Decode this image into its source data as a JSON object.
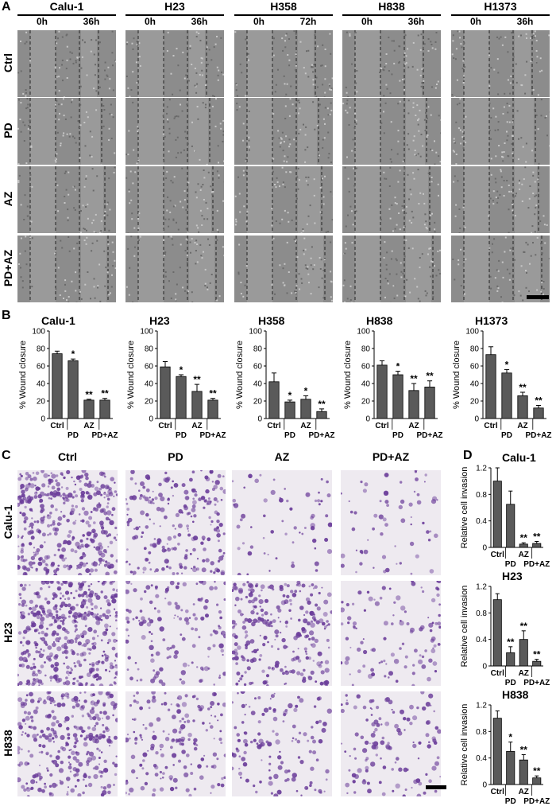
{
  "panels": {
    "A": "A",
    "B": "B",
    "C": "C",
    "D": "D"
  },
  "wound_assay": {
    "cell_lines": [
      {
        "name": "Calu-1",
        "times": [
          "0h",
          "36h"
        ]
      },
      {
        "name": "H23",
        "times": [
          "0h",
          "36h"
        ]
      },
      {
        "name": "H358",
        "times": [
          "0h",
          "72h"
        ]
      },
      {
        "name": "H838",
        "times": [
          "0h",
          "36h"
        ]
      },
      {
        "name": "H1373",
        "times": [
          "0h",
          "36h"
        ]
      }
    ],
    "conditions": [
      "Ctrl",
      "PD",
      "AZ",
      "PD+AZ"
    ]
  },
  "invasion_images": {
    "conditions": [
      "Ctrl",
      "PD",
      "AZ",
      "PD+AZ"
    ],
    "cell_lines": [
      "Calu-1",
      "H23",
      "H838"
    ]
  },
  "colors": {
    "bar": "#5a5a5a",
    "micro_bg": "#8c8c8c",
    "stain_bg": "#eeeaf0",
    "stain_cell": "#6b3d9a"
  },
  "chart_data": [
    {
      "type": "bar",
      "title": "Calu-1",
      "ylabel": "% Wound closure",
      "ylim": [
        0,
        100
      ],
      "yticks": [
        "0",
        "20",
        "40",
        "60",
        "80",
        "100"
      ],
      "categories": [
        "Ctrl",
        "PD",
        "AZ",
        "PD+AZ"
      ],
      "values": [
        74,
        66,
        21,
        21
      ],
      "errors": [
        3,
        2,
        1,
        2
      ],
      "sig": [
        "",
        "*",
        "**",
        "**"
      ]
    },
    {
      "type": "bar",
      "title": "H23",
      "ylabel": "% Wound closure",
      "ylim": [
        0,
        100
      ],
      "yticks": [
        "0",
        "20",
        "40",
        "60",
        "80",
        "100"
      ],
      "categories": [
        "Ctrl",
        "PD",
        "AZ",
        "PD+AZ"
      ],
      "values": [
        59,
        48,
        31,
        21
      ],
      "errors": [
        6,
        2,
        8,
        2
      ],
      "sig": [
        "",
        "*",
        "**",
        "**"
      ]
    },
    {
      "type": "bar",
      "title": "H358",
      "ylabel": "% Wound closure",
      "ylim": [
        0,
        100
      ],
      "yticks": [
        "0",
        "20",
        "40",
        "60",
        "80",
        "100"
      ],
      "categories": [
        "Ctrl",
        "PD",
        "AZ",
        "PD+AZ"
      ],
      "values": [
        42,
        19,
        22,
        8
      ],
      "errors": [
        10,
        2,
        4,
        3
      ],
      "sig": [
        "",
        "*",
        "*",
        "**"
      ]
    },
    {
      "type": "bar",
      "title": "H838",
      "ylabel": "% Wound closure",
      "ylim": [
        0,
        100
      ],
      "yticks": [
        "0",
        "20",
        "40",
        "60",
        "80",
        "100"
      ],
      "categories": [
        "Ctrl",
        "PD",
        "AZ",
        "PD+AZ"
      ],
      "values": [
        61,
        50,
        32,
        36
      ],
      "errors": [
        5,
        4,
        8,
        7
      ],
      "sig": [
        "",
        "*",
        "**",
        "**"
      ]
    },
    {
      "type": "bar",
      "title": "H1373",
      "ylabel": "% Wound closure",
      "ylim": [
        0,
        100
      ],
      "yticks": [
        "0",
        "20",
        "40",
        "60",
        "80",
        "100"
      ],
      "categories": [
        "Ctrl",
        "PD",
        "AZ",
        "PD+AZ"
      ],
      "values": [
        73,
        52,
        26,
        12
      ],
      "errors": [
        9,
        4,
        4,
        3
      ],
      "sig": [
        "",
        "*",
        "**",
        "**"
      ]
    },
    {
      "type": "bar",
      "title": "Calu-1",
      "ylabel": "Relative cell invasion",
      "ylim": [
        0,
        1.2
      ],
      "yticks": [
        "0",
        "0.4",
        "0.8",
        "1.2"
      ],
      "categories": [
        "Ctrl",
        "PD",
        "AZ",
        "PD+AZ"
      ],
      "values": [
        1.0,
        0.65,
        0.05,
        0.06
      ],
      "errors": [
        0.2,
        0.2,
        0.02,
        0.03
      ],
      "sig": [
        "",
        "",
        "**",
        "**"
      ]
    },
    {
      "type": "bar",
      "title": "H23",
      "ylabel": "Relative cell invasion",
      "ylim": [
        0,
        1.2
      ],
      "yticks": [
        "0",
        "0.4",
        "0.8",
        "1.2"
      ],
      "categories": [
        "Ctrl",
        "PD",
        "AZ",
        "PD+AZ"
      ],
      "values": [
        1.0,
        0.2,
        0.4,
        0.07
      ],
      "errors": [
        0.09,
        0.09,
        0.13,
        0.03
      ],
      "sig": [
        "",
        "**",
        "**",
        "**"
      ]
    },
    {
      "type": "bar",
      "title": "H838",
      "ylabel": "Relative cell invasion",
      "ylim": [
        0,
        1.2
      ],
      "yticks": [
        "0",
        "0.4",
        "0.8",
        "1.2"
      ],
      "categories": [
        "Ctrl",
        "PD",
        "AZ",
        "PD+AZ"
      ],
      "values": [
        1.0,
        0.5,
        0.37,
        0.1
      ],
      "errors": [
        0.11,
        0.14,
        0.08,
        0.03
      ],
      "sig": [
        "",
        "*",
        "**",
        "**"
      ]
    }
  ]
}
